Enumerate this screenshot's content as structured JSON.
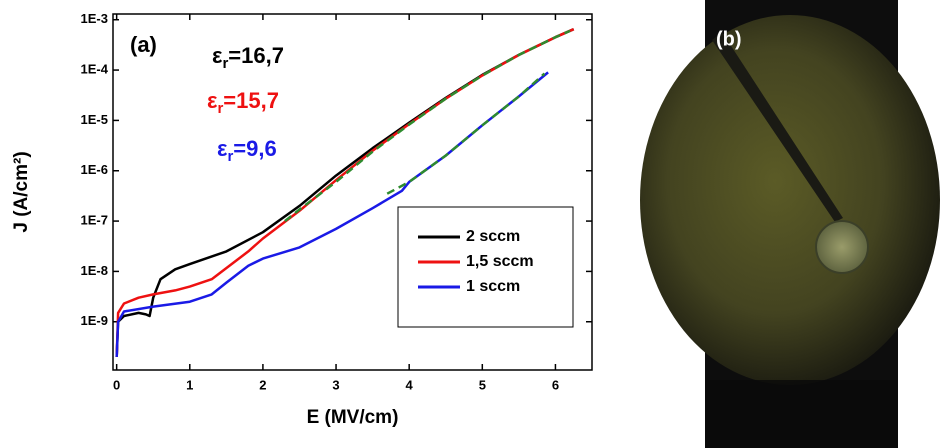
{
  "chart_data": {
    "type": "line",
    "log_y": true,
    "panel_label": "(a)",
    "x_label": "E (MV/cm)",
    "y_label": "J (A/cm²)",
    "xlim": [
      -0.05,
      6.5
    ],
    "xticks": [
      0,
      1,
      2,
      3,
      4,
      5,
      6
    ],
    "ylim": [
      1.1e-10,
      0.0013
    ],
    "yticks": [
      {
        "value": 1e-09,
        "label": "1E-9"
      },
      {
        "value": 1e-08,
        "label": "1E-8"
      },
      {
        "value": 1e-07,
        "label": "1E-7"
      },
      {
        "value": 1e-06,
        "label": "1E-6"
      },
      {
        "value": 1e-05,
        "label": "1E-5"
      },
      {
        "value": 0.0001,
        "label": "1E-4"
      },
      {
        "value": 0.001,
        "label": "1E-3"
      }
    ],
    "legend": "lower right",
    "series": [
      {
        "name": "2 sccm",
        "color": "#000000",
        "x": [
          0,
          0.02,
          0.1,
          0.3,
          0.4,
          0.45,
          0.5,
          0.6,
          0.8,
          1.0,
          1.5,
          2.0,
          2.5,
          3.0,
          3.5,
          4.0,
          4.5,
          5.0,
          5.5,
          6.0,
          6.25
        ],
        "values": [
          2e-10,
          1e-09,
          1.3e-09,
          1.5e-09,
          1.4e-09,
          1.3e-09,
          3e-09,
          7e-09,
          1.1e-08,
          1.4e-08,
          2.5e-08,
          6e-08,
          2e-07,
          8e-07,
          2.8e-06,
          9e-06,
          2.8e-05,
          8e-05,
          0.0002,
          0.00045,
          0.00065
        ]
      },
      {
        "name": "1,5 sccm",
        "color": "#ee1111",
        "x": [
          0,
          0.02,
          0.1,
          0.3,
          0.5,
          0.8,
          1.0,
          1.3,
          1.6,
          1.8,
          2.0,
          2.5,
          3.0,
          3.5,
          4.0,
          4.5,
          5.0,
          5.5,
          6.0,
          6.25
        ],
        "values": [
          2e-10,
          1.5e-09,
          2.3e-09,
          3e-09,
          3.5e-09,
          4.2e-09,
          5e-09,
          7e-09,
          1.5e-08,
          2.5e-08,
          4.5e-08,
          1.6e-07,
          6.5e-07,
          2.5e-06,
          8.5e-06,
          2.7e-05,
          7.8e-05,
          0.0002,
          0.00045,
          0.00065
        ]
      },
      {
        "name": "1 sccm",
        "color": "#1a1ae6",
        "x": [
          0,
          0.02,
          0.1,
          0.5,
          1.0,
          1.3,
          1.5,
          1.8,
          2.0,
          2.5,
          3.0,
          3.5,
          3.9,
          4.0,
          4.5,
          5.0,
          5.5,
          5.9
        ],
        "values": [
          2e-10,
          1e-09,
          1.6e-09,
          2e-09,
          2.5e-09,
          3.5e-09,
          6e-09,
          1.3e-08,
          1.8e-08,
          3e-08,
          7e-08,
          1.8e-07,
          4e-07,
          6e-07,
          2e-06,
          8e-06,
          3e-05,
          9e-05
        ]
      }
    ],
    "fits": [
      {
        "color": "#2e8b2e",
        "x": [
          2.3,
          2.5,
          3.0,
          3.5,
          4.0,
          4.5,
          5.0,
          5.5,
          6.0,
          6.2
        ],
        "values": [
          1e-07,
          1.7e-07,
          6e-07,
          2.4e-06,
          8.3e-06,
          2.7e-05,
          7.8e-05,
          0.0002,
          0.00045,
          0.0006
        ]
      },
      {
        "color": "#2e8b2e",
        "x": [
          3.7,
          4.0,
          4.5,
          5.0,
          5.5,
          5.85
        ],
        "values": [
          3.5e-07,
          6e-07,
          2e-06,
          8e-06,
          3e-05,
          8.5e-05
        ]
      }
    ],
    "annotations": [
      {
        "symbol": "ε",
        "sub": "r",
        "text": "=16,7",
        "color": "#000000"
      },
      {
        "symbol": "ε",
        "sub": "r",
        "text": "=15,7",
        "color": "#ee1111"
      },
      {
        "symbol": "ε",
        "sub": "r",
        "text": "=9,6",
        "color": "#1a1ae6"
      }
    ]
  },
  "photo": {
    "label": "(b)"
  }
}
